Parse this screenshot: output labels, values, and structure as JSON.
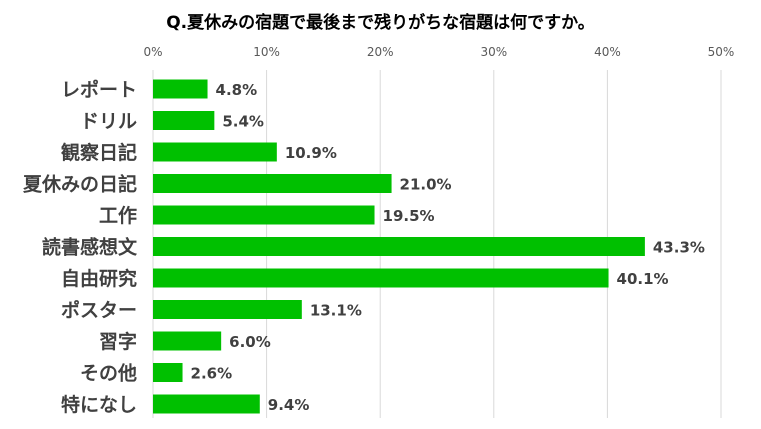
{
  "chart_data": {
    "type": "bar",
    "orientation": "horizontal",
    "title": "Q.夏休みの宿題で最後まで残りがちな宿題は何ですか。",
    "categories": [
      "レポート",
      "ドリル",
      "観察日記",
      "夏休みの日記",
      "工作",
      "読書感想文",
      "自由研究",
      "ポスター",
      "習字",
      "その他",
      "特になし"
    ],
    "values": [
      4.8,
      5.4,
      10.9,
      21.0,
      19.5,
      43.3,
      40.1,
      13.1,
      6.0,
      2.6,
      9.4
    ],
    "value_labels": [
      "4.8%",
      "5.4%",
      "10.9%",
      "21.0%",
      "19.5%",
      "43.3%",
      "40.1%",
      "13.1%",
      "6.0%",
      "2.6%",
      "9.4%"
    ],
    "xlim": [
      0,
      50
    ],
    "xticks": [
      0,
      10,
      20,
      30,
      40,
      50
    ],
    "xtick_labels": [
      "0%",
      "10%",
      "20%",
      "30%",
      "40%",
      "50%"
    ],
    "xaxis_position": "top",
    "grid": true,
    "bar_color": "#00c000"
  }
}
